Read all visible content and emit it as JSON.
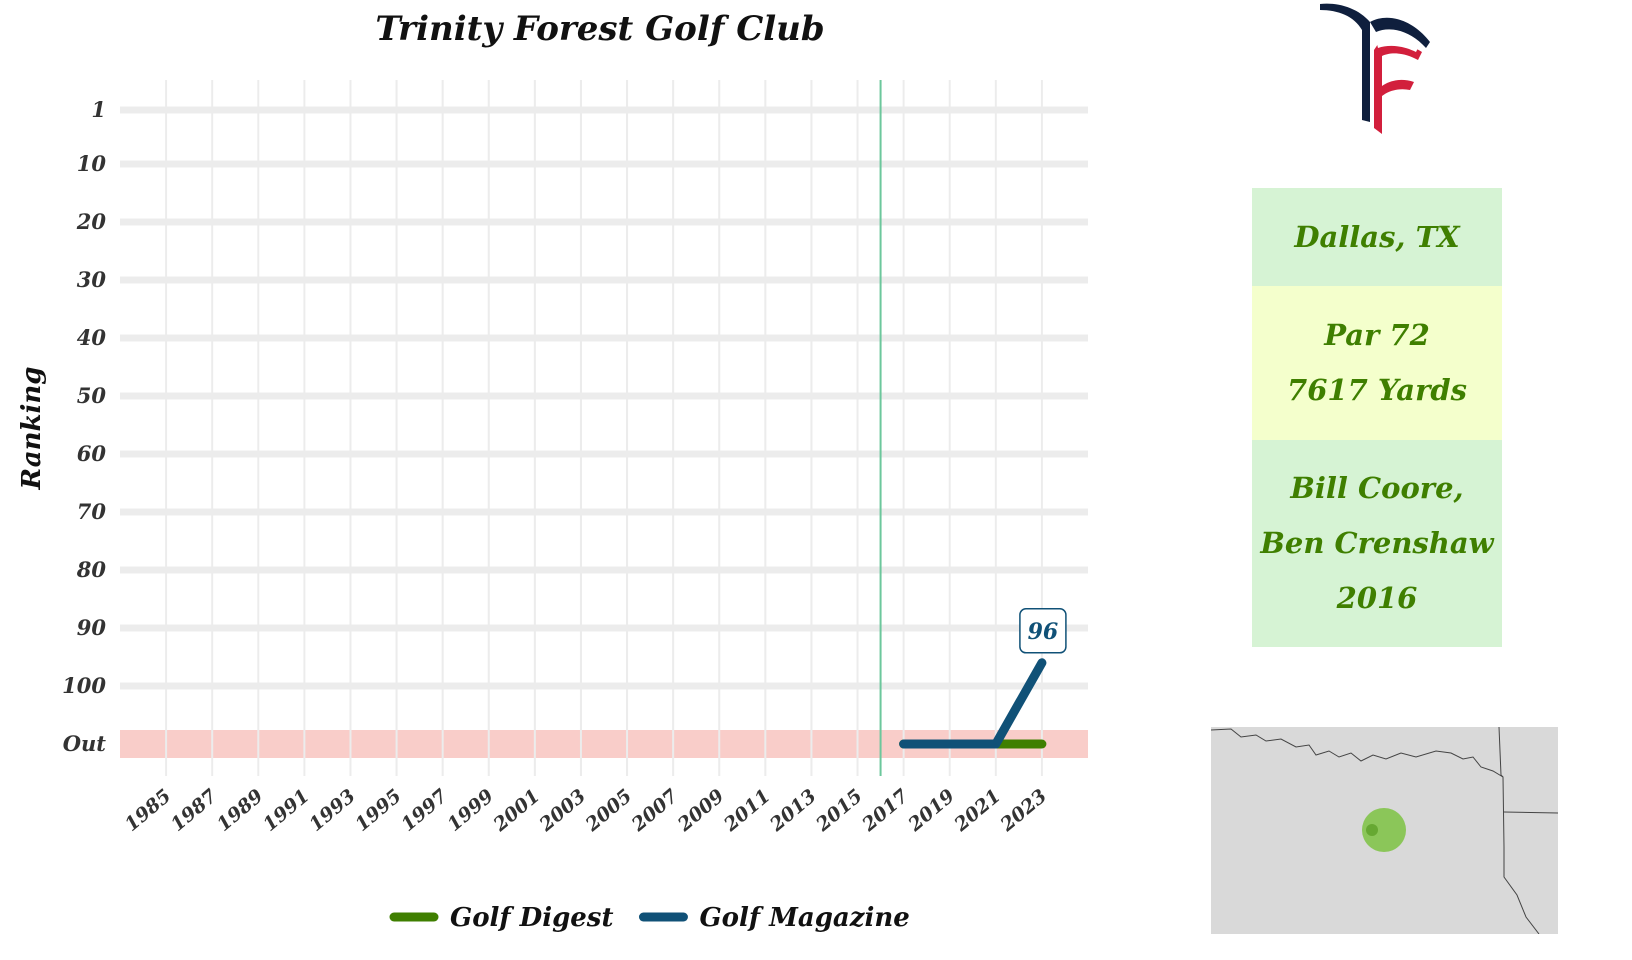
{
  "chart_data": {
    "type": "line",
    "title": "Trinity Forest Golf Club",
    "xlabel": "",
    "ylabel": "Ranking",
    "x_ticks": [
      "1985",
      "1987",
      "1989",
      "1991",
      "1993",
      "1995",
      "1997",
      "1999",
      "2001",
      "2003",
      "2005",
      "2007",
      "2009",
      "2011",
      "2013",
      "2015",
      "2017",
      "2019",
      "2021",
      "2023"
    ],
    "xlim": [
      1983,
      2025
    ],
    "y_ticks": [
      "1",
      "10",
      "20",
      "30",
      "40",
      "50",
      "60",
      "70",
      "80",
      "90",
      "100",
      "Out"
    ],
    "y_tick_values": [
      1,
      10,
      20,
      30,
      40,
      50,
      60,
      70,
      80,
      90,
      100,
      110
    ],
    "ylim": [
      110,
      1
    ],
    "y_reversed": true,
    "out_band_value": 110,
    "vertical_reference_line": 2016,
    "series": [
      {
        "name": "Golf Digest",
        "color": "#3f7f00",
        "x": [
          2017,
          2019,
          2021,
          2023
        ],
        "y": [
          110,
          110,
          110,
          110
        ]
      },
      {
        "name": "Golf Magazine",
        "color": "#105177",
        "x": [
          2017,
          2019,
          2021,
          2023
        ],
        "y": [
          110,
          110,
          110,
          96
        ]
      }
    ],
    "annotation": {
      "series": "Golf Magazine",
      "x": 2023,
      "y": 96,
      "label": "96"
    },
    "legend_position": "bottom",
    "grid": true
  },
  "course_info": {
    "location": "Dallas, TX",
    "par": "Par 72",
    "yards": "7617 Yards",
    "architect_line1": "Bill Coore,",
    "architect_line2": "Ben Crenshaw",
    "year_opened": "2016"
  },
  "colors": {
    "out_band": "#f9cdc9",
    "reference_line": "#6cc79c",
    "grid": "#ececec",
    "location_box": "#d6f3d4",
    "par_box": "#f4ffcc",
    "architect_box": "#d6f3d4",
    "map_background": "#d9d9d9",
    "map_marker": "#7cc242",
    "logo_navy": "#0f1f3d",
    "logo_red": "#d21f3c"
  },
  "icons": {
    "logo": "tf-monogram-logo",
    "map": "region-locator-map"
  }
}
